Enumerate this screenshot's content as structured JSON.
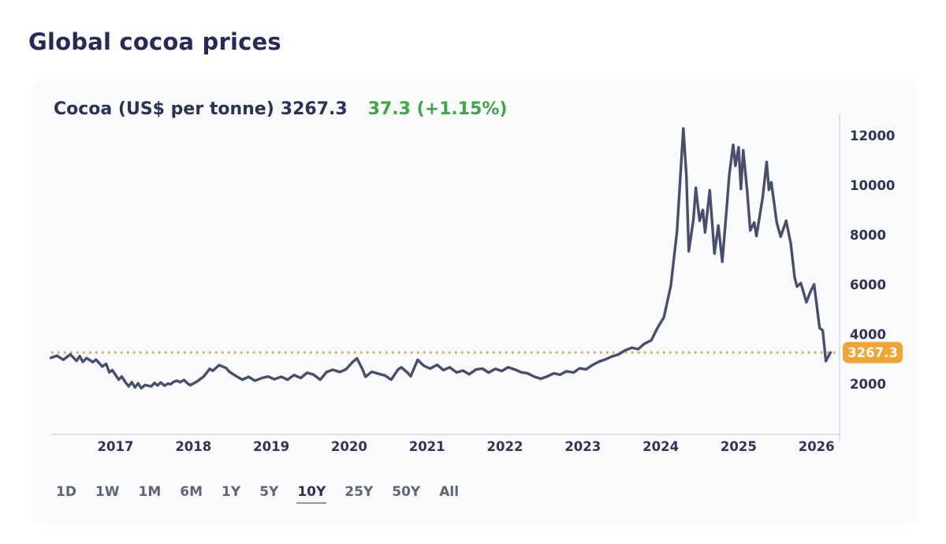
{
  "page": {
    "title": "Global cocoa prices"
  },
  "card": {
    "header": {
      "instrument_label": "Cocoa (US$ per tonne)",
      "price": "3267.3",
      "change": "37.3 (+1.15%)"
    },
    "current_price_badge": "3267.3",
    "range_buttons": [
      {
        "label": "1D",
        "active": false
      },
      {
        "label": "1W",
        "active": false
      },
      {
        "label": "1M",
        "active": false
      },
      {
        "label": "6M",
        "active": false
      },
      {
        "label": "1Y",
        "active": false
      },
      {
        "label": "5Y",
        "active": false
      },
      {
        "label": "10Y",
        "active": true
      },
      {
        "label": "25Y",
        "active": false
      },
      {
        "label": "50Y",
        "active": false
      },
      {
        "label": "All",
        "active": false
      }
    ]
  },
  "colors": {
    "navy": "#2b3157",
    "title_navy": "#262b56",
    "green": "#3fa846",
    "orange": "#f1a433",
    "line": "#474e6e",
    "axis": "#d8dade",
    "tick_text": "#2e3456",
    "badge_text": "#ffffff"
  },
  "chart_data": {
    "type": "line",
    "title": "Cocoa (US$ per tonne)",
    "series_name": "Cocoa price",
    "xlabel": "",
    "ylabel": "US$ per tonne",
    "x_ticks": [
      2017,
      2018,
      2019,
      2020,
      2021,
      2022,
      2023,
      2024,
      2025,
      2026
    ],
    "y_ticks": [
      2000,
      4000,
      6000,
      8000,
      10000,
      12000
    ],
    "x_range": [
      2016.17,
      2026.3
    ],
    "y_range": [
      1450,
      12650
    ],
    "grid": false,
    "legend": "none",
    "current_value": 3267.3,
    "reference_line": 3267.3,
    "points": [
      [
        2016.17,
        3050
      ],
      [
        2016.25,
        3140
      ],
      [
        2016.33,
        2970
      ],
      [
        2016.42,
        3190
      ],
      [
        2016.5,
        2930
      ],
      [
        2016.54,
        3120
      ],
      [
        2016.58,
        2890
      ],
      [
        2016.63,
        3040
      ],
      [
        2016.71,
        2880
      ],
      [
        2016.75,
        2980
      ],
      [
        2016.83,
        2700
      ],
      [
        2016.88,
        2810
      ],
      [
        2016.92,
        2470
      ],
      [
        2016.96,
        2560
      ],
      [
        2017.04,
        2170
      ],
      [
        2017.08,
        2300
      ],
      [
        2017.13,
        2060
      ],
      [
        2017.17,
        1900
      ],
      [
        2017.21,
        2070
      ],
      [
        2017.25,
        1860
      ],
      [
        2017.29,
        2030
      ],
      [
        2017.33,
        1830
      ],
      [
        2017.38,
        1960
      ],
      [
        2017.46,
        1900
      ],
      [
        2017.5,
        2040
      ],
      [
        2017.54,
        1940
      ],
      [
        2017.58,
        2060
      ],
      [
        2017.63,
        1930
      ],
      [
        2017.67,
        2010
      ],
      [
        2017.71,
        1990
      ],
      [
        2017.75,
        2090
      ],
      [
        2017.79,
        2130
      ],
      [
        2017.83,
        2070
      ],
      [
        2017.88,
        2160
      ],
      [
        2017.92,
        2040
      ],
      [
        2017.96,
        1950
      ],
      [
        2018.04,
        2090
      ],
      [
        2018.13,
        2290
      ],
      [
        2018.21,
        2610
      ],
      [
        2018.25,
        2530
      ],
      [
        2018.33,
        2760
      ],
      [
        2018.42,
        2640
      ],
      [
        2018.46,
        2500
      ],
      [
        2018.54,
        2330
      ],
      [
        2018.63,
        2170
      ],
      [
        2018.71,
        2290
      ],
      [
        2018.79,
        2130
      ],
      [
        2018.88,
        2240
      ],
      [
        2018.96,
        2300
      ],
      [
        2019.04,
        2190
      ],
      [
        2019.13,
        2290
      ],
      [
        2019.21,
        2170
      ],
      [
        2019.29,
        2360
      ],
      [
        2019.38,
        2240
      ],
      [
        2019.46,
        2450
      ],
      [
        2019.54,
        2380
      ],
      [
        2019.63,
        2170
      ],
      [
        2019.71,
        2480
      ],
      [
        2019.79,
        2570
      ],
      [
        2019.88,
        2480
      ],
      [
        2019.96,
        2590
      ],
      [
        2020.04,
        2870
      ],
      [
        2020.1,
        3030
      ],
      [
        2020.17,
        2600
      ],
      [
        2020.21,
        2290
      ],
      [
        2020.29,
        2490
      ],
      [
        2020.38,
        2410
      ],
      [
        2020.46,
        2340
      ],
      [
        2020.54,
        2170
      ],
      [
        2020.63,
        2590
      ],
      [
        2020.67,
        2670
      ],
      [
        2020.75,
        2450
      ],
      [
        2020.79,
        2310
      ],
      [
        2020.88,
        2970
      ],
      [
        2020.96,
        2730
      ],
      [
        2021.04,
        2620
      ],
      [
        2021.13,
        2770
      ],
      [
        2021.21,
        2560
      ],
      [
        2021.29,
        2670
      ],
      [
        2021.38,
        2460
      ],
      [
        2021.46,
        2540
      ],
      [
        2021.54,
        2390
      ],
      [
        2021.63,
        2580
      ],
      [
        2021.71,
        2620
      ],
      [
        2021.79,
        2460
      ],
      [
        2021.88,
        2610
      ],
      [
        2021.96,
        2520
      ],
      [
        2022.04,
        2670
      ],
      [
        2022.13,
        2580
      ],
      [
        2022.21,
        2470
      ],
      [
        2022.29,
        2430
      ],
      [
        2022.38,
        2290
      ],
      [
        2022.46,
        2210
      ],
      [
        2022.54,
        2300
      ],
      [
        2022.63,
        2430
      ],
      [
        2022.71,
        2370
      ],
      [
        2022.79,
        2510
      ],
      [
        2022.88,
        2460
      ],
      [
        2022.96,
        2630
      ],
      [
        2023.04,
        2590
      ],
      [
        2023.13,
        2770
      ],
      [
        2023.21,
        2900
      ],
      [
        2023.29,
        2990
      ],
      [
        2023.38,
        3110
      ],
      [
        2023.46,
        3190
      ],
      [
        2023.54,
        3350
      ],
      [
        2023.63,
        3460
      ],
      [
        2023.71,
        3400
      ],
      [
        2023.79,
        3620
      ],
      [
        2023.88,
        3760
      ],
      [
        2023.96,
        4260
      ],
      [
        2024.04,
        4680
      ],
      [
        2024.13,
        5950
      ],
      [
        2024.21,
        8150
      ],
      [
        2024.29,
        12290
      ],
      [
        2024.33,
        10380
      ],
      [
        2024.36,
        7340
      ],
      [
        2024.42,
        8620
      ],
      [
        2024.45,
        9900
      ],
      [
        2024.5,
        8570
      ],
      [
        2024.54,
        9010
      ],
      [
        2024.57,
        8100
      ],
      [
        2024.63,
        9800
      ],
      [
        2024.69,
        7250
      ],
      [
        2024.74,
        8380
      ],
      [
        2024.79,
        6920
      ],
      [
        2024.85,
        9200
      ],
      [
        2024.88,
        10390
      ],
      [
        2024.93,
        11630
      ],
      [
        2024.96,
        10780
      ],
      [
        2025.0,
        11530
      ],
      [
        2025.03,
        9850
      ],
      [
        2025.06,
        11410
      ],
      [
        2025.11,
        9760
      ],
      [
        2025.15,
        8180
      ],
      [
        2025.2,
        8500
      ],
      [
        2025.23,
        7960
      ],
      [
        2025.31,
        9520
      ],
      [
        2025.36,
        10940
      ],
      [
        2025.39,
        9820
      ],
      [
        2025.42,
        10120
      ],
      [
        2025.49,
        8500
      ],
      [
        2025.54,
        7930
      ],
      [
        2025.61,
        8570
      ],
      [
        2025.67,
        7650
      ],
      [
        2025.72,
        6290
      ],
      [
        2025.75,
        5920
      ],
      [
        2025.8,
        6060
      ],
      [
        2025.87,
        5290
      ],
      [
        2025.92,
        5700
      ],
      [
        2025.97,
        6010
      ],
      [
        2026.04,
        4250
      ],
      [
        2026.08,
        4160
      ],
      [
        2026.12,
        2920
      ],
      [
        2026.18,
        3267.3
      ]
    ]
  }
}
